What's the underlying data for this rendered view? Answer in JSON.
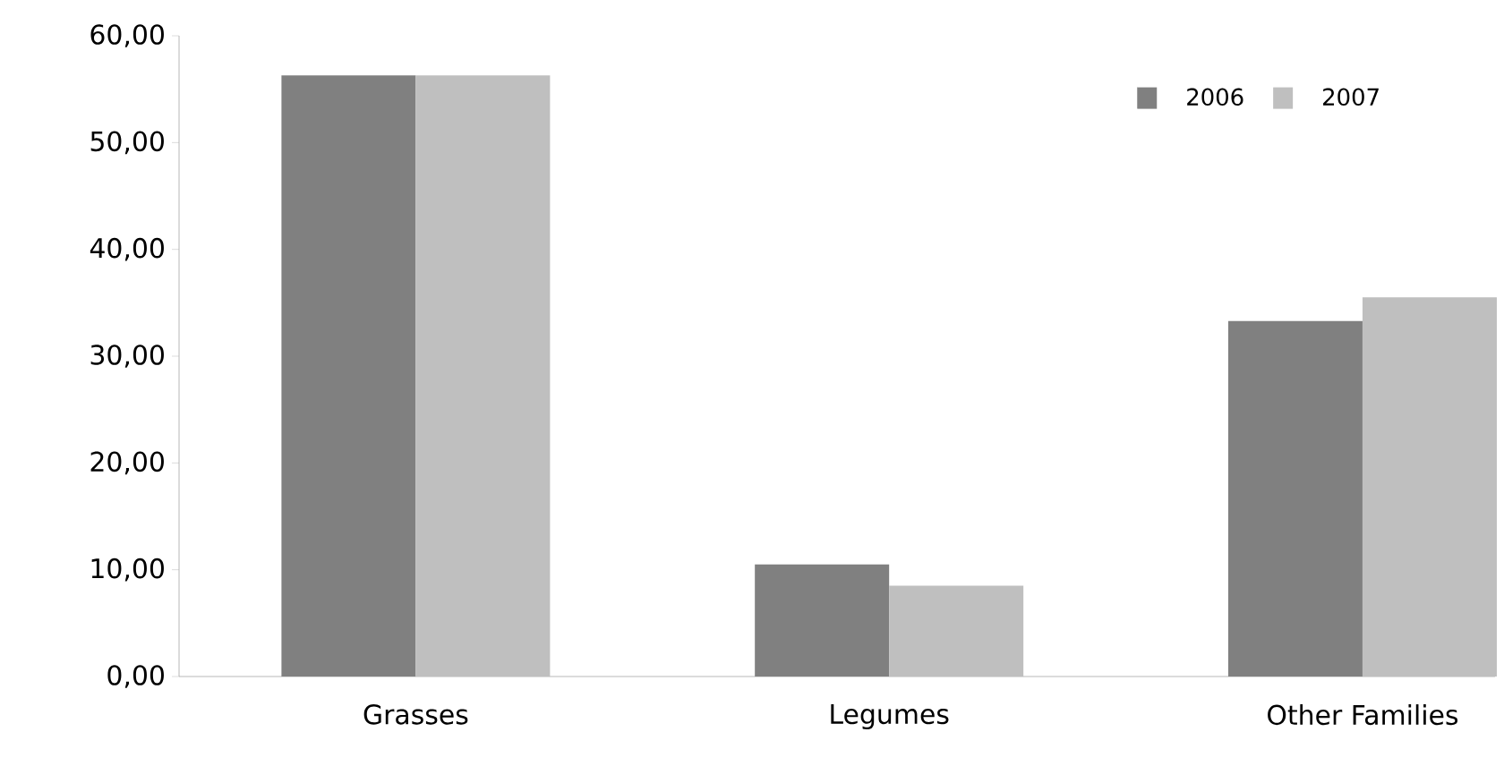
{
  "chart_data": {
    "type": "bar",
    "categories": [
      "Grasses",
      "Legumes",
      "Other Families"
    ],
    "series": [
      {
        "name": "2006",
        "color": "#808080",
        "values": [
          56.3,
          10.5,
          33.3
        ]
      },
      {
        "name": "2007",
        "color": "#bfbfbf",
        "values": [
          56.3,
          8.5,
          35.5
        ]
      }
    ],
    "ylim": [
      0,
      60
    ],
    "yticks": [
      {
        "value": 0,
        "label": "0,00"
      },
      {
        "value": 10,
        "label": "10,00"
      },
      {
        "value": 20,
        "label": "20,00"
      },
      {
        "value": 30,
        "label": "30,00"
      },
      {
        "value": 40,
        "label": "40,00"
      },
      {
        "value": 50,
        "label": "50,00"
      },
      {
        "value": 60,
        "label": "60,00"
      }
    ],
    "grid": false,
    "legend": "top right"
  }
}
